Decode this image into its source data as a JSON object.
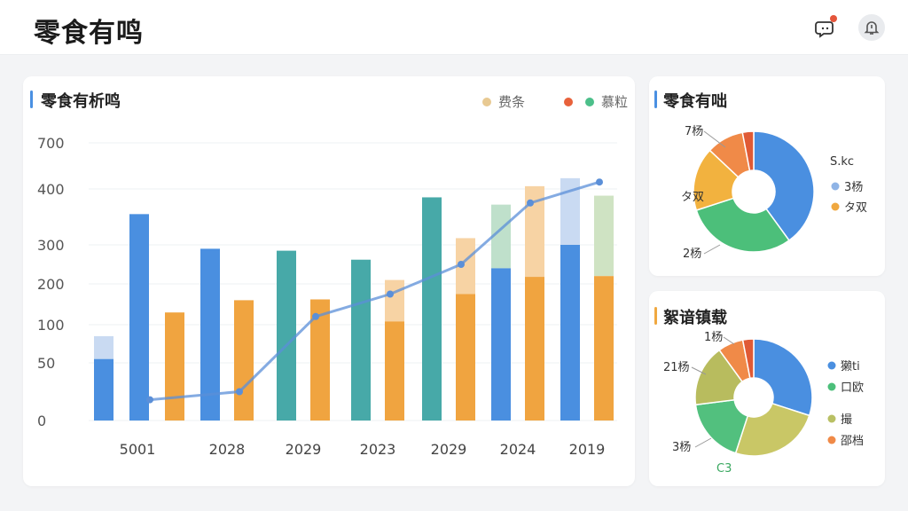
{
  "header": {
    "title": "零食有鸣"
  },
  "main_chart": {
    "title": "零食有析鸣",
    "accent_color": "#4a90e2",
    "legend": [
      {
        "label": "费条",
        "color": "#e8c992"
      },
      {
        "label": "慕粒",
        "color": "#4cbf8a"
      }
    ]
  },
  "side_chart_1": {
    "title": "零食有咄",
    "accent_color": "#4a90e2"
  },
  "side_chart_2": {
    "title": "絮谙镇载",
    "accent_color": "#f0a840"
  },
  "chart_data": [
    {
      "type": "bar",
      "categories": [
        "5001",
        "2028",
        "2029",
        "2023",
        "2029",
        "2024",
        "2019"
      ],
      "y_ticks": [
        "0",
        "50",
        "100",
        "200",
        "300",
        "400",
        "700"
      ],
      "series": [
        {
          "values": [
            [
              60,
              45
            ],
            [
              355,
              0,
              140
            ],
            [
              0,
              0,
              0
            ]
          ]
        }
      ],
      "groups": [
        {
          "label": "5001",
          "bars": [
            {
              "color": "#4a8fe0",
              "low": 0,
              "high": 55,
              "light_high": 85,
              "light_color": "#c9daf2"
            },
            {
              "color": "#4a8fe0",
              "low": 0,
              "high": 355
            },
            {
              "color": "#f0a440",
              "low": 0,
              "high": 130
            }
          ]
        },
        {
          "label": "2028",
          "bars": [
            {
              "color": "#4a8fe0",
              "low": 0,
              "high": 290
            },
            {
              "color": "#f0a440",
              "low": 0,
              "high": 160
            }
          ]
        },
        {
          "label": "2029",
          "bars": [
            {
              "color": "#47a9a8",
              "low": 0,
              "high": 285
            },
            {
              "color": "#f0a440",
              "low": 0,
              "high": 162
            }
          ]
        },
        {
          "label": "2023",
          "bars": [
            {
              "color": "#47a9a8",
              "low": 0,
              "high": 262
            },
            {
              "color": "#f0a440",
              "low": 0,
              "high": 108,
              "light_high": 210,
              "light_color": "#f7d3a4"
            }
          ]
        },
        {
          "label": "2029",
          "bars": [
            {
              "color": "#47a9a8",
              "low": 0,
              "high": 385
            },
            {
              "color": "#f0a440",
              "low": 0,
              "high": 175,
              "light_high": 312,
              "light_color": "#f7d3a4"
            }
          ]
        },
        {
          "label": "2024",
          "bars": [
            {
              "color": "#4a8fe0",
              "low": 0,
              "high": 240,
              "light_high": 372,
              "light_color": "#bfe0cb"
            },
            {
              "color": "#f0a440",
              "low": 0,
              "high": 218,
              "light_high": 418,
              "light_color": "#f7d3a4"
            }
          ]
        },
        {
          "label": "2019",
          "bars": [
            {
              "color": "#4a8fe0",
              "low": 0,
              "high": 300,
              "light_high": 470,
              "light_color": "#c9daf2"
            },
            {
              "color": "#f0a440",
              "low": 0,
              "high": 220,
              "light_high": 388,
              "light_color": "#cfe3c3"
            }
          ]
        }
      ],
      "line": {
        "color": "#5b8fd8",
        "points": [
          18,
          25,
          120,
          175,
          250,
          375,
          445
        ]
      }
    },
    {
      "type": "pie",
      "labels": [
        "7杨",
        "S.kc",
        "3杨",
        "タ双",
        "2杨"
      ],
      "legend": [
        {
          "label": "3杨",
          "color": "#8fb4e6"
        },
        {
          "label": "タ双",
          "color": "#f0a840"
        }
      ],
      "slices": [
        {
          "value": 40,
          "color": "#4a8fe0"
        },
        {
          "value": 30,
          "color": "#4cbf7a"
        },
        {
          "value": 17,
          "color": "#f2b23f"
        },
        {
          "value": 10,
          "color": "#f08a48"
        },
        {
          "value": 3,
          "color": "#e05a35"
        }
      ]
    },
    {
      "type": "pie",
      "labels": [
        "1杨",
        "21杨",
        "3杨",
        "C3"
      ],
      "legend": [
        {
          "label": "獭ti",
          "color": "#4a8fe0"
        },
        {
          "label": "口欧",
          "color": "#4cbf7a"
        },
        {
          "label": "撮",
          "color": "#b9c064"
        },
        {
          "label": "邵档",
          "color": "#f08a48"
        }
      ],
      "slices": [
        {
          "value": 30,
          "color": "#4a8fe0"
        },
        {
          "value": 25,
          "color": "#c9c766"
        },
        {
          "value": 18,
          "color": "#52c07e"
        },
        {
          "value": 17,
          "color": "#b8bc5e"
        },
        {
          "value": 7,
          "color": "#f08a48"
        },
        {
          "value": 3,
          "color": "#e05a35"
        }
      ]
    }
  ]
}
